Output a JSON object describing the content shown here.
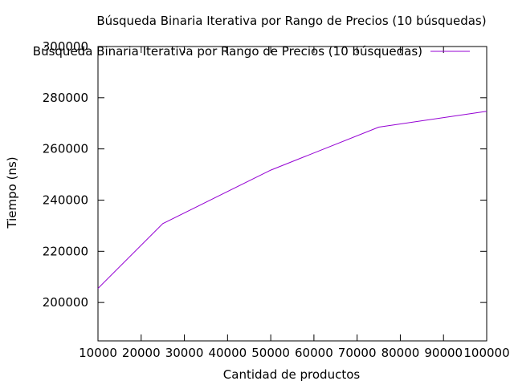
{
  "chart_data": {
    "type": "line",
    "title": "Búsqueda Binaria Iterativa por Rango de Precios (10 búsquedas)",
    "xlabel": "Cantidad de productos",
    "ylabel": "Tiempo (ns)",
    "xlim": [
      10000,
      100000
    ],
    "ylim": [
      185000,
      300000
    ],
    "x_ticks": [
      "10000",
      "20000",
      "30000",
      "40000",
      "50000",
      "60000",
      "70000",
      "80000",
      "90000",
      "100000"
    ],
    "y_ticks": [
      "200000",
      "220000",
      "240000",
      "260000",
      "280000",
      "300000"
    ],
    "grid": false,
    "legend_position": "top-right",
    "series": [
      {
        "name": "Búsqueda Binaria Iterativa por Rango de Precios (10 búsquedas)",
        "color": "#9400d3",
        "x": [
          10000,
          25000,
          50000,
          75000,
          100000
        ],
        "y": [
          205500,
          230800,
          251700,
          268500,
          274700
        ]
      }
    ]
  }
}
